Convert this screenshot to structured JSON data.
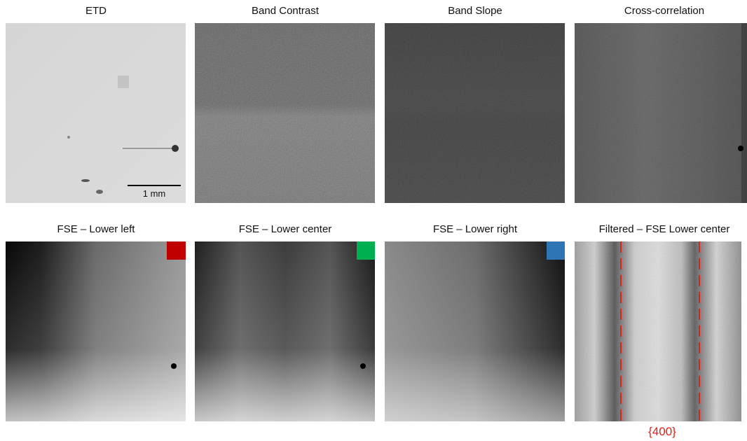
{
  "panels": [
    {
      "title": "ETD"
    },
    {
      "title": "Band Contrast"
    },
    {
      "title": "Band Slope"
    },
    {
      "title": "Cross-correlation"
    },
    {
      "title": "FSE – Lower left"
    },
    {
      "title": "FSE – Lower center"
    },
    {
      "title": "FSE – Lower right"
    },
    {
      "title": "Filtered – FSE Lower center"
    }
  ],
  "scale_bar": "1 mm",
  "annotation": "{400}"
}
